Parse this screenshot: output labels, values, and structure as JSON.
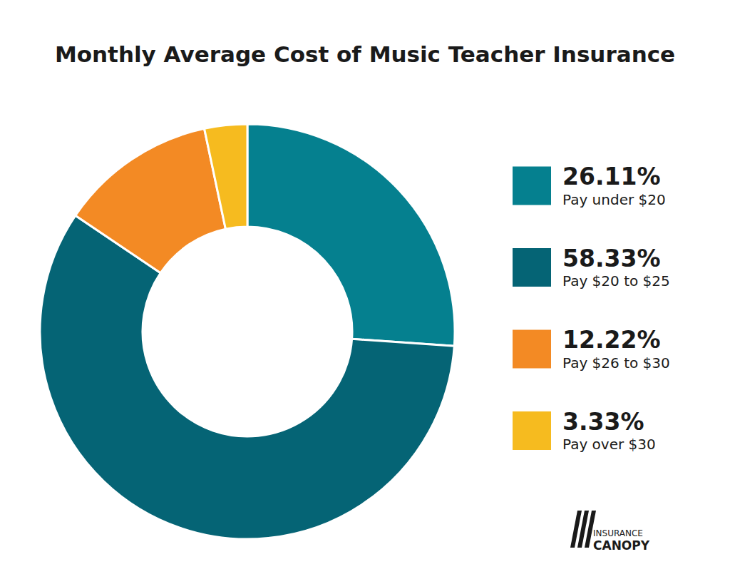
{
  "chart_data": {
    "type": "pie",
    "title": "Monthly Average Cost of Music Teacher Insurance",
    "categories": [
      "Pay under $20",
      "Pay $20 to $25",
      "Pay $26 to $30",
      "Pay over $30"
    ],
    "values": [
      26.11,
      58.33,
      12.22,
      3.33
    ],
    "value_labels": [
      "26.11%",
      "58.33%",
      "12.22%",
      "3.33%"
    ],
    "colors": [
      "#05808f",
      "#056475",
      "#f38a24",
      "#f6bb1f"
    ],
    "legend": "right",
    "data_labels": false,
    "annotations": [
      "INSURANCE",
      "CANOPY"
    ]
  }
}
